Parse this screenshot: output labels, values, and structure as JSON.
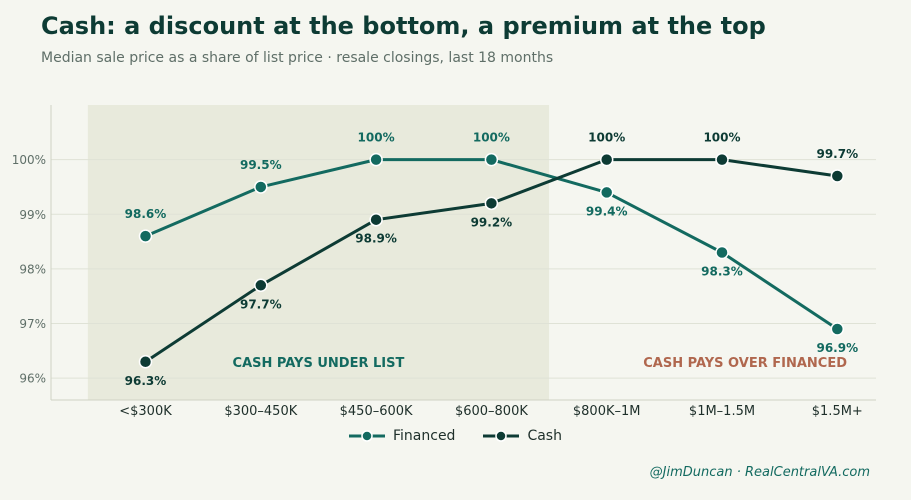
{
  "header": {
    "title": "Cash: a discount at the bottom, a premium at the top",
    "subtitle": "Median sale price as a share of list price  ·  resale closings, last 18 months"
  },
  "credit": "@JimDuncan  ·  RealCentralVA.com",
  "colors": {
    "financed": "#136a60",
    "cash": "#0d3b34",
    "shade": "#e8eadc",
    "over_annotation": "#b0674e",
    "under_annotation": "#136a60"
  },
  "chart_data": {
    "type": "line",
    "categories": [
      "<$300K",
      "$300–450K",
      "$450–600K",
      "$600–800K",
      "$800K–1M",
      "$1M–1.5M",
      "$1.5M+"
    ],
    "series": [
      {
        "name": "Financed",
        "values": [
          98.6,
          99.5,
          100,
          100,
          99.4,
          98.3,
          96.9
        ],
        "labels": [
          "98.6%",
          "99.5%",
          "100%",
          "100%",
          "99.4%",
          "98.3%",
          "96.9%"
        ]
      },
      {
        "name": "Cash",
        "values": [
          96.3,
          97.7,
          98.9,
          99.2,
          100,
          100,
          99.7
        ],
        "labels": [
          "96.3%",
          "97.7%",
          "98.9%",
          "99.2%",
          "100%",
          "100%",
          "99.7%"
        ]
      }
    ],
    "y_ticks": [
      96,
      97,
      98,
      99,
      100
    ],
    "y_tick_labels": [
      "96%",
      "97%",
      "98%",
      "99%",
      "100%"
    ],
    "ylim": [
      95.6,
      101
    ],
    "grid": true,
    "legend_position": "bottom-center",
    "shaded_region": {
      "from_category_index": -0.5,
      "to_category_index": 3.5
    },
    "annotations": {
      "under": "CASH PAYS UNDER LIST",
      "over": "CASH PAYS OVER FINANCED"
    }
  }
}
